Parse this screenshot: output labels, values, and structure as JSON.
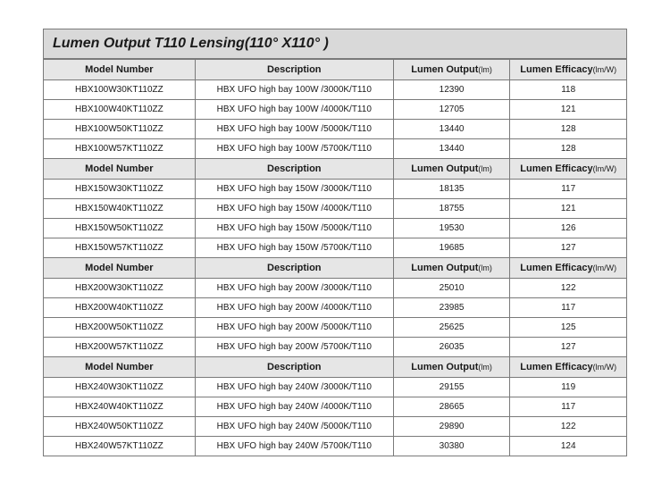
{
  "title": "Lumen Output T110 Lensing(110° X110° )",
  "header": {
    "model": "Model Number",
    "description": "Description",
    "output": "Lumen Output",
    "output_unit": "(lm)",
    "efficacy": "Lumen Efficacy",
    "efficacy_unit": "(lm/W)"
  },
  "groups": [
    {
      "rows": [
        {
          "model": "HBX100W30KT110ZZ",
          "desc": "HBX UFO high bay 100W /3000K/T110",
          "output": "12390",
          "eff": "118"
        },
        {
          "model": "HBX100W40KT110ZZ",
          "desc": "HBX UFO high bay 100W /4000K/T110",
          "output": "12705",
          "eff": "121"
        },
        {
          "model": "HBX100W50KT110ZZ",
          "desc": "HBX UFO high bay 100W /5000K/T110",
          "output": "13440",
          "eff": "128"
        },
        {
          "model": "HBX100W57KT110ZZ",
          "desc": "HBX UFO high bay 100W /5700K/T110",
          "output": "13440",
          "eff": "128"
        }
      ]
    },
    {
      "rows": [
        {
          "model": "HBX150W30KT110ZZ",
          "desc": "HBX UFO high bay 150W /3000K/T110",
          "output": "18135",
          "eff": "117"
        },
        {
          "model": "HBX150W40KT110ZZ",
          "desc": "HBX UFO high bay 150W /4000K/T110",
          "output": "18755",
          "eff": "121"
        },
        {
          "model": "HBX150W50KT110ZZ",
          "desc": "HBX UFO high bay 150W /5000K/T110",
          "output": "19530",
          "eff": "126"
        },
        {
          "model": "HBX150W57KT110ZZ",
          "desc": "HBX UFO high bay 150W /5700K/T110",
          "output": "19685",
          "eff": "127"
        }
      ]
    },
    {
      "rows": [
        {
          "model": "HBX200W30KT110ZZ",
          "desc": "HBX UFO high bay 200W /3000K/T110",
          "output": "25010",
          "eff": "122"
        },
        {
          "model": "HBX200W40KT110ZZ",
          "desc": "HBX UFO high bay 200W /4000K/T110",
          "output": "23985",
          "eff": "117"
        },
        {
          "model": "HBX200W50KT110ZZ",
          "desc": "HBX UFO high bay 200W /5000K/T110",
          "output": "25625",
          "eff": "125"
        },
        {
          "model": "HBX200W57KT110ZZ",
          "desc": "HBX UFO high bay 200W /5700K/T110",
          "output": "26035",
          "eff": "127"
        }
      ]
    },
    {
      "rows": [
        {
          "model": "HBX240W30KT110ZZ",
          "desc": "HBX UFO high bay 240W /3000K/T110",
          "output": "29155",
          "eff": "119"
        },
        {
          "model": "HBX240W40KT110ZZ",
          "desc": "HBX UFO high bay 240W /4000K/T110",
          "output": "28665",
          "eff": "117"
        },
        {
          "model": "HBX240W50KT110ZZ",
          "desc": "HBX UFO high bay 240W /5000K/T110",
          "output": "29890",
          "eff": "122"
        },
        {
          "model": "HBX240W57KT110ZZ",
          "desc": "HBX UFO high bay 240W /5700K/T110",
          "output": "30380",
          "eff": "124"
        }
      ]
    }
  ]
}
